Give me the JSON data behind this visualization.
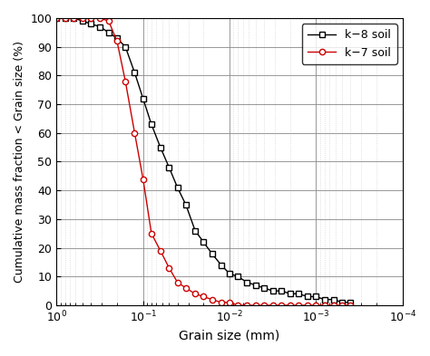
{
  "title": "",
  "xlabel": "Grain size (mm)",
  "ylabel": "Cumulative mass fraction < Grain size (%)",
  "ylim": [
    0,
    100
  ],
  "k8_x": [
    1.0,
    0.8,
    0.63,
    0.5,
    0.4,
    0.315,
    0.25,
    0.2,
    0.16,
    0.125,
    0.1,
    0.08,
    0.063,
    0.05,
    0.04,
    0.032,
    0.025,
    0.02,
    0.016,
    0.0125,
    0.01,
    0.008,
    0.0063,
    0.005,
    0.004,
    0.00315,
    0.0025,
    0.002,
    0.0016,
    0.00125,
    0.001,
    0.0008,
    0.00063,
    0.0005,
    0.0004
  ],
  "k8_y": [
    100,
    100,
    100,
    99,
    98,
    97,
    95,
    93,
    90,
    81,
    72,
    63,
    55,
    48,
    41,
    35,
    26,
    22,
    18,
    14,
    11,
    10,
    8,
    7,
    6,
    5,
    5,
    4,
    4,
    3,
    3,
    2,
    2,
    1,
    1
  ],
  "k7_x": [
    1.0,
    0.8,
    0.63,
    0.5,
    0.4,
    0.315,
    0.25,
    0.2,
    0.16,
    0.125,
    0.1,
    0.08,
    0.063,
    0.05,
    0.04,
    0.032,
    0.025,
    0.02,
    0.016,
    0.0125,
    0.01,
    0.008,
    0.0063,
    0.005,
    0.004,
    0.00315,
    0.0025,
    0.002,
    0.0016,
    0.00125,
    0.001,
    0.0008,
    0.00063,
    0.0005,
    0.0004
  ],
  "k7_y": [
    100,
    100,
    100,
    100,
    100,
    100,
    99,
    92,
    78,
    60,
    44,
    25,
    19,
    13,
    8,
    6,
    4,
    3,
    2,
    1,
    1,
    0,
    0,
    0,
    0,
    0,
    0,
    0,
    0,
    0,
    0,
    0,
    0,
    0,
    0
  ],
  "k8_color": "#000000",
  "k7_color": "#cc0000",
  "k8_label": "k−8 soil",
  "k7_label": "k−7 soil",
  "grid_major_color": "#888888",
  "grid_minor_color": "#cccccc",
  "bg_color": "#ffffff"
}
